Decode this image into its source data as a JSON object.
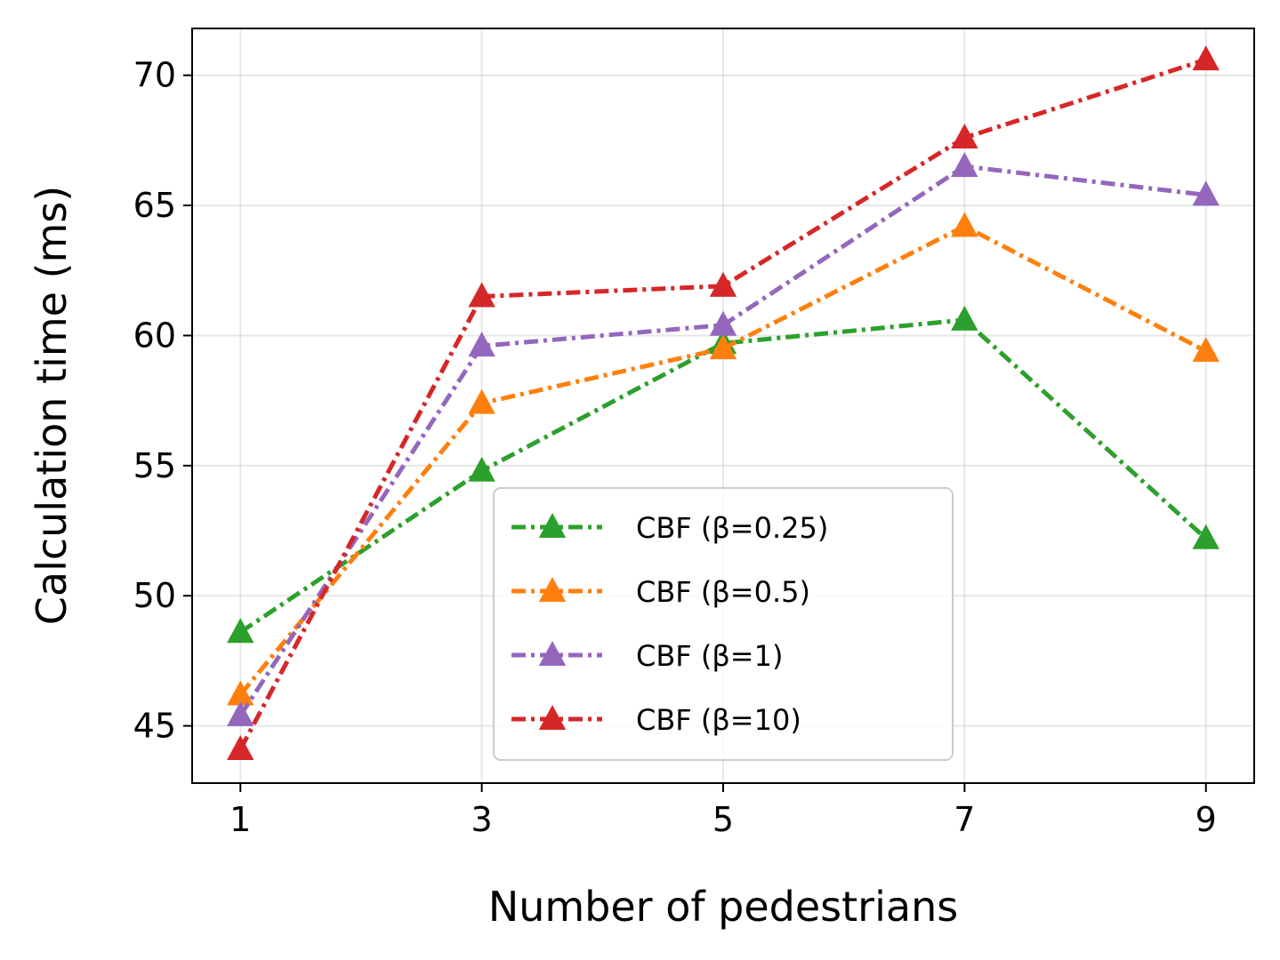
{
  "chart_data": {
    "type": "line",
    "xlabel": "Number of pedestrians",
    "ylabel": "Calculation time (ms)",
    "x": [
      1,
      3,
      5,
      7,
      9
    ],
    "xlim": [
      0.6,
      9.4
    ],
    "ylim": [
      42.8,
      71.8
    ],
    "xticks": [
      1,
      3,
      5,
      7,
      9
    ],
    "yticks": [
      45,
      50,
      55,
      60,
      65,
      70
    ],
    "grid": true,
    "legend_position": "lower-center",
    "line_style": "dash-dot",
    "marker": "triangle-up",
    "series": [
      {
        "name": "CBF (β=0.25)",
        "color": "#2ca02c",
        "values": [
          48.6,
          54.8,
          59.7,
          60.6,
          52.2
        ]
      },
      {
        "name": "CBF (β=0.5)",
        "color": "#ff7f0e",
        "values": [
          46.2,
          57.4,
          59.5,
          64.2,
          59.4
        ]
      },
      {
        "name": "CBF (β=1)",
        "color": "#9467bd",
        "values": [
          45.4,
          59.6,
          60.4,
          66.5,
          65.4
        ]
      },
      {
        "name": "CBF (β=10)",
        "color": "#d62728",
        "values": [
          44.1,
          61.5,
          61.9,
          67.6,
          70.6
        ]
      }
    ]
  }
}
